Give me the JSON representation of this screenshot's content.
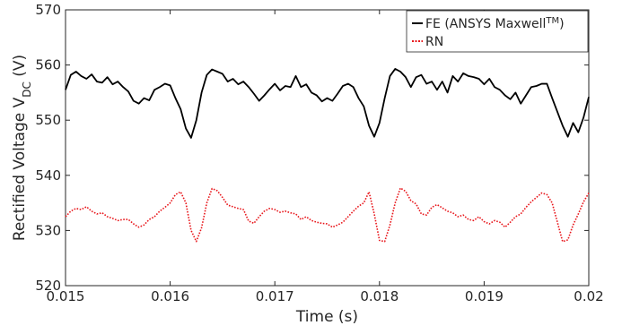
{
  "chart_data": {
    "type": "line",
    "xlabel": "Time (s)",
    "ylabel": {
      "main": "Rectified Voltage V",
      "subscript": "DC",
      "unit": " (V)"
    },
    "xlim": [
      0.015,
      0.02
    ],
    "ylim": [
      520,
      570
    ],
    "xticks": [
      0.015,
      0.016,
      0.017,
      0.018,
      0.019,
      0.02
    ],
    "xtick_labels": [
      "0.015",
      "0.016",
      "0.017",
      "0.018",
      "0.019",
      "0.02"
    ],
    "yticks": [
      520,
      530,
      540,
      550,
      560,
      570
    ],
    "ytick_labels": [
      "520",
      "530",
      "540",
      "550",
      "560",
      "570"
    ],
    "grid": false,
    "legend_position": "top-right",
    "legend": [
      {
        "main": "FE (ANSYS Maxwell",
        "sup": "TM",
        "end": ")"
      },
      {
        "main": "RN"
      }
    ],
    "series": [
      {
        "name": "FE (ANSYS Maxwell™)",
        "color": "#000000",
        "style": "solid",
        "x": [
          0.015,
          0.01505,
          0.0151,
          0.01515,
          0.0152,
          0.01525,
          0.0153,
          0.01535,
          0.0154,
          0.01545,
          0.0155,
          0.01555,
          0.0156,
          0.01565,
          0.0157,
          0.01575,
          0.0158,
          0.01585,
          0.0159,
          0.01595,
          0.016,
          0.01605,
          0.0161,
          0.01615,
          0.0162,
          0.01625,
          0.0163,
          0.01635,
          0.0164,
          0.01645,
          0.0165,
          0.01655,
          0.0166,
          0.01665,
          0.0167,
          0.01675,
          0.0168,
          0.01685,
          0.0169,
          0.01695,
          0.017,
          0.01705,
          0.0171,
          0.01715,
          0.0172,
          0.01725,
          0.0173,
          0.01735,
          0.0174,
          0.01745,
          0.0175,
          0.01755,
          0.0176,
          0.01765,
          0.0177,
          0.01775,
          0.0178,
          0.01785,
          0.0179,
          0.01795,
          0.018,
          0.01805,
          0.0181,
          0.01815,
          0.0182,
          0.01825,
          0.0183,
          0.01835,
          0.0184,
          0.01845,
          0.0185,
          0.01855,
          0.0186,
          0.01865,
          0.0187,
          0.01875,
          0.0188,
          0.01885,
          0.0189,
          0.01895,
          0.019,
          0.01905,
          0.0191,
          0.01915,
          0.0192,
          0.01925,
          0.0193,
          0.01935,
          0.0194,
          0.01945,
          0.0195,
          0.01955,
          0.0196,
          0.01965,
          0.0197,
          0.01975,
          0.0198,
          0.01985,
          0.0199,
          0.01995,
          0.02
        ],
        "y": [
          555.5,
          558.2,
          558.8,
          558.0,
          557.5,
          558.3,
          557.0,
          556.8,
          557.8,
          556.5,
          557.0,
          556.0,
          555.2,
          553.5,
          553.0,
          554.0,
          553.6,
          555.5,
          556.0,
          556.6,
          556.3,
          554.0,
          552.0,
          548.5,
          546.8,
          550.0,
          555.0,
          558.2,
          559.2,
          558.8,
          558.4,
          557.0,
          557.5,
          556.5,
          557.0,
          556.0,
          554.8,
          553.5,
          554.5,
          555.6,
          556.6,
          555.4,
          556.2,
          556.0,
          558.0,
          556.0,
          556.5,
          555.0,
          554.5,
          553.4,
          554.0,
          553.5,
          554.8,
          556.2,
          556.6,
          556.0,
          554.0,
          552.5,
          549.0,
          547.0,
          549.5,
          554.0,
          558.0,
          559.3,
          558.8,
          557.8,
          556.0,
          557.8,
          558.2,
          556.6,
          557.0,
          555.5,
          557.0,
          555.0,
          558.0,
          557.0,
          558.5,
          558.0,
          557.8,
          557.5,
          556.5,
          557.5,
          556.0,
          555.5,
          554.5,
          553.8,
          555.0,
          553.0,
          554.5,
          556.0,
          556.2,
          556.6,
          556.6,
          554.0,
          551.5,
          549.0,
          547.0,
          549.5,
          547.8,
          550.5,
          554.2
        ]
      },
      {
        "name": "RN",
        "color": "#e8161b",
        "style": "dotted",
        "x": [
          0.015,
          0.01505,
          0.0151,
          0.01515,
          0.0152,
          0.01525,
          0.0153,
          0.01535,
          0.0154,
          0.01545,
          0.0155,
          0.01555,
          0.0156,
          0.01565,
          0.0157,
          0.01575,
          0.0158,
          0.01585,
          0.0159,
          0.01595,
          0.016,
          0.01605,
          0.0161,
          0.01615,
          0.0162,
          0.01625,
          0.0163,
          0.01635,
          0.0164,
          0.01645,
          0.0165,
          0.01655,
          0.0166,
          0.01665,
          0.0167,
          0.01675,
          0.0168,
          0.01685,
          0.0169,
          0.01695,
          0.017,
          0.01705,
          0.0171,
          0.01715,
          0.0172,
          0.01725,
          0.0173,
          0.01735,
          0.0174,
          0.01745,
          0.0175,
          0.01755,
          0.0176,
          0.01765,
          0.0177,
          0.01775,
          0.0178,
          0.01785,
          0.0179,
          0.01795,
          0.018,
          0.01805,
          0.0181,
          0.01815,
          0.0182,
          0.01825,
          0.0183,
          0.01835,
          0.0184,
          0.01845,
          0.0185,
          0.01855,
          0.0186,
          0.01865,
          0.0187,
          0.01875,
          0.0188,
          0.01885,
          0.0189,
          0.01895,
          0.019,
          0.01905,
          0.0191,
          0.01915,
          0.0192,
          0.01925,
          0.0193,
          0.01935,
          0.0194,
          0.01945,
          0.0195,
          0.01955,
          0.0196,
          0.01965,
          0.0197,
          0.01975,
          0.0198,
          0.01985,
          0.0199,
          0.01995,
          0.02
        ],
        "y": [
          532.5,
          533.5,
          534.0,
          533.8,
          534.3,
          533.5,
          533.0,
          533.2,
          532.5,
          532.2,
          531.8,
          532.0,
          532.0,
          531.2,
          530.6,
          531.0,
          532.0,
          532.5,
          533.5,
          534.2,
          535.0,
          536.5,
          537.0,
          535.0,
          530.0,
          528.0,
          530.5,
          535.0,
          537.6,
          537.2,
          536.0,
          534.6,
          534.3,
          534.0,
          533.8,
          531.7,
          531.3,
          532.5,
          533.5,
          534.0,
          533.8,
          533.3,
          533.5,
          533.2,
          533.0,
          532.0,
          532.5,
          531.8,
          531.5,
          531.3,
          531.2,
          530.6,
          531.0,
          531.5,
          532.5,
          533.5,
          534.4,
          535.0,
          537.0,
          533.0,
          528.2,
          528.0,
          531.0,
          535.0,
          537.7,
          537.1,
          535.4,
          534.8,
          533.0,
          532.8,
          534.2,
          534.7,
          534.1,
          533.5,
          533.2,
          532.5,
          532.8,
          532.0,
          531.8,
          532.5,
          531.6,
          531.2,
          531.8,
          531.5,
          530.6,
          531.5,
          532.5,
          533.0,
          534.2,
          535.2,
          536.0,
          536.8,
          536.5,
          535.0,
          531.5,
          528.0,
          528.3,
          531.0,
          533.0,
          535.2,
          536.8
        ]
      }
    ]
  }
}
